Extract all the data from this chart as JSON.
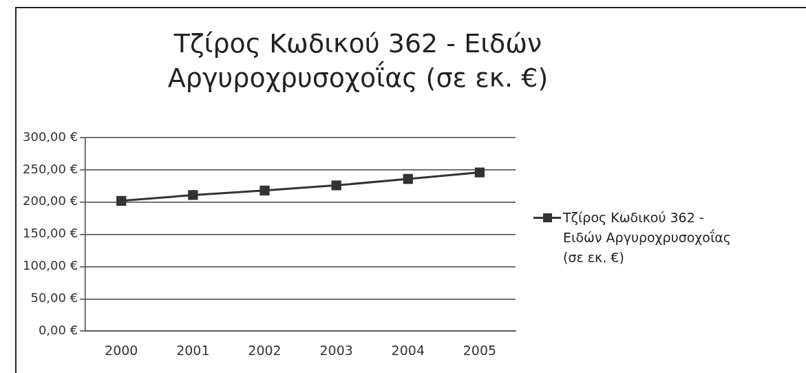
{
  "chart_data": {
    "type": "line",
    "title": "Τζίρος Κωδικού 362 - Ειδών Αργυροχρυσοχοΐας (σε εκ. €)",
    "categories": [
      "2000",
      "2001",
      "2002",
      "2003",
      "2004",
      "2005"
    ],
    "series": [
      {
        "name": "Τζίρος Κωδικού 362 - Ειδών Αργυροχρυσοχοΐας (σε εκ. €)",
        "color": "#333333",
        "values": [
          202,
          211,
          218,
          226,
          236,
          246
        ]
      }
    ],
    "ylim": [
      0,
      300
    ],
    "yticks": [
      {
        "value": 0,
        "label": "0,00 €"
      },
      {
        "value": 50,
        "label": "50,00 €"
      },
      {
        "value": 100,
        "label": "100,00 €"
      },
      {
        "value": 150,
        "label": "150,00 €"
      },
      {
        "value": 200,
        "label": "200,00 €"
      },
      {
        "value": 250,
        "label": "250,00 €"
      },
      {
        "value": 300,
        "label": "300,00 €"
      }
    ],
    "grid": "y",
    "legend": "right",
    "marker": "square",
    "line_style": "solid"
  }
}
